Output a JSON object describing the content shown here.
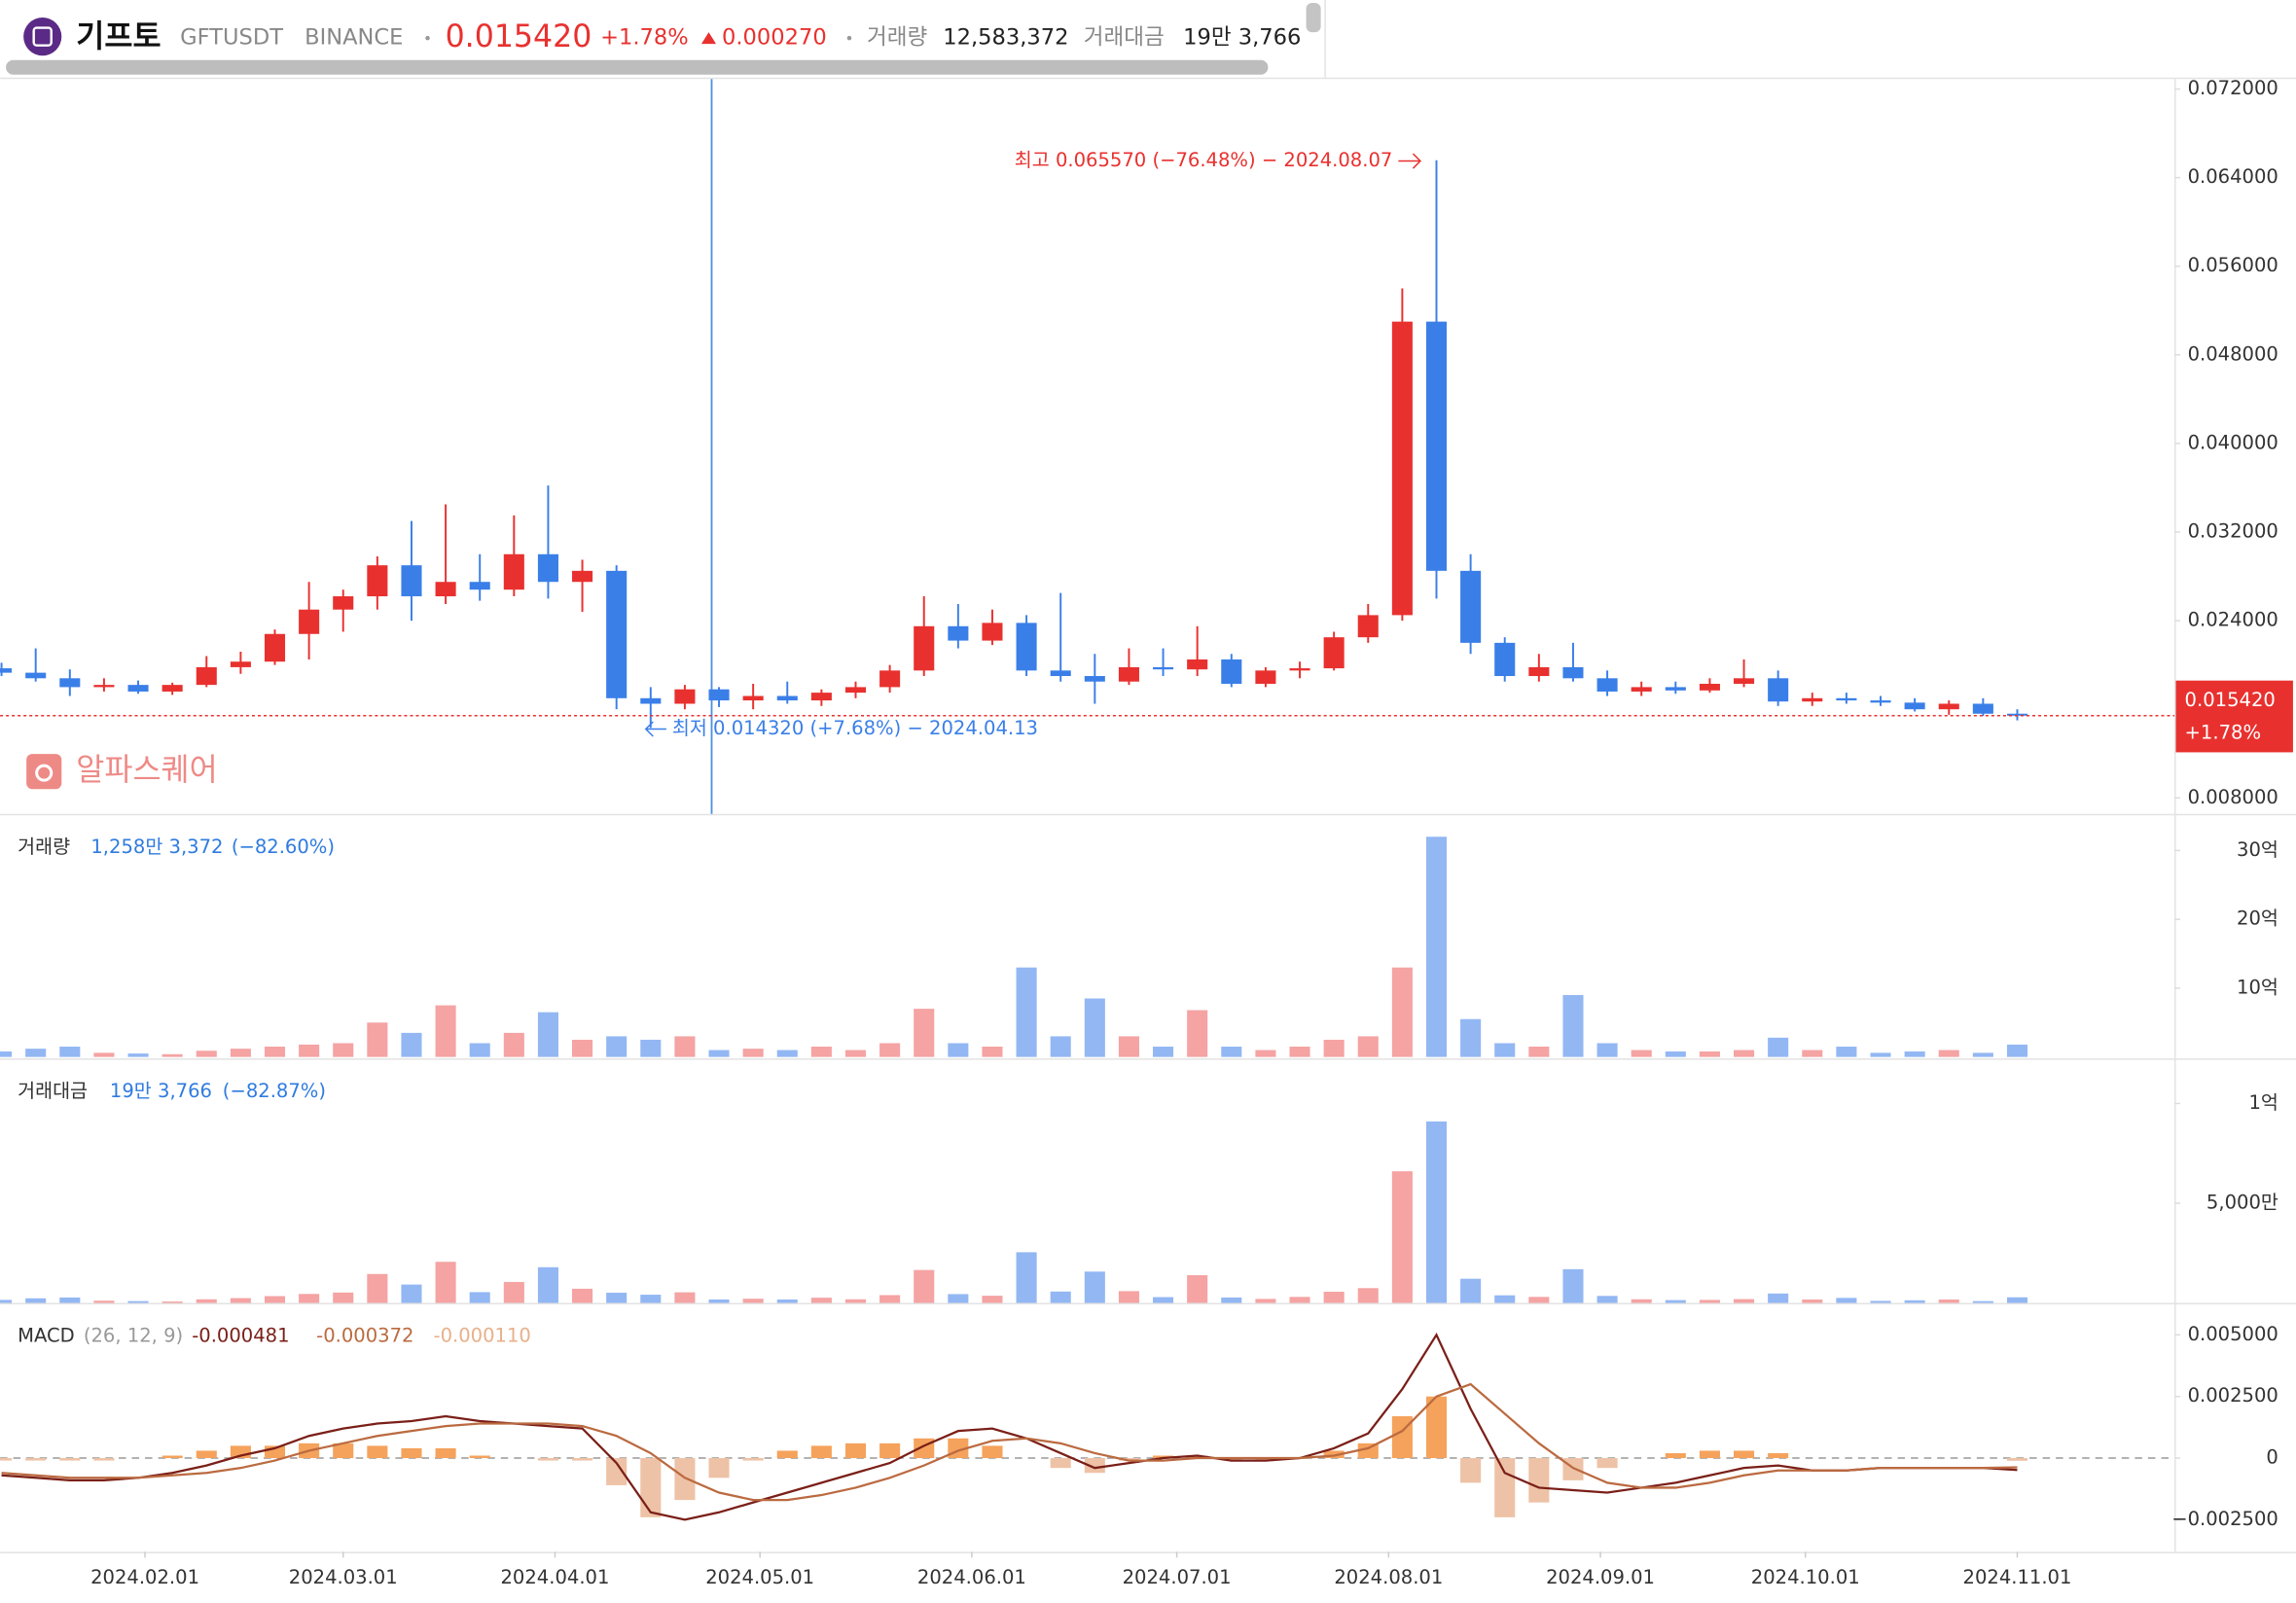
{
  "header": {
    "name": "기프토",
    "symbol": "GFTUSDT",
    "exchange": "BINANCE",
    "price": "0.015420",
    "change_pct": "+1.78%",
    "change": "0.000270",
    "volume_label": "거래량",
    "volume": "12,583,372",
    "turnover_label": "거래대금",
    "turnover": "19만 3,766"
  },
  "watermark": "알파스퀘어",
  "chart_data": [
    {
      "type": "candlestick",
      "up_color": "#e8312f",
      "down_color": "#3a7fe8",
      "xlim": [
        0,
        63.6
      ],
      "ylim": [
        0.00655,
        0.0729
      ],
      "yticks": [
        {
          "value": 0.008,
          "label": "0.008000"
        },
        {
          "value": 0.024,
          "label": "0.024000"
        },
        {
          "value": 0.032,
          "label": "0.032000"
        },
        {
          "value": 0.04,
          "label": "0.040000"
        },
        {
          "value": 0.048,
          "label": "0.048000"
        },
        {
          "value": 0.056,
          "label": "0.056000"
        },
        {
          "value": 0.064,
          "label": "0.064000"
        },
        {
          "value": 0.072,
          "label": "0.072000"
        }
      ],
      "open": [
        0.0197,
        0.0193,
        0.0188,
        0.018,
        0.0182,
        0.0176,
        0.0182,
        0.0198,
        0.0203,
        0.0228,
        0.025,
        0.0262,
        0.029,
        0.0262,
        0.0275,
        0.0268,
        0.03,
        0.0275,
        0.0285,
        0.017,
        0.0165,
        0.0178,
        0.0168,
        0.0172,
        0.0168,
        0.0175,
        0.018,
        0.0195,
        0.0235,
        0.0222,
        0.0238,
        0.0195,
        0.019,
        0.0185,
        0.0198,
        0.0196,
        0.0205,
        0.0183,
        0.0195,
        0.0197,
        0.0225,
        0.0245,
        0.051,
        0.0285,
        0.022,
        0.019,
        0.0198,
        0.0188,
        0.0176,
        0.018,
        0.0177,
        0.0183,
        0.0188,
        0.0167,
        0.017,
        0.0168,
        0.0166,
        0.016,
        0.0165,
        0.0156
      ],
      "high": [
        0.0202,
        0.0215,
        0.0196,
        0.0188,
        0.0186,
        0.0184,
        0.0208,
        0.0212,
        0.0232,
        0.0275,
        0.0268,
        0.0298,
        0.033,
        0.0345,
        0.03,
        0.0335,
        0.0362,
        0.0295,
        0.029,
        0.018,
        0.0182,
        0.018,
        0.0183,
        0.0185,
        0.0178,
        0.0185,
        0.02,
        0.0262,
        0.0255,
        0.025,
        0.0245,
        0.0265,
        0.021,
        0.0215,
        0.0215,
        0.0235,
        0.021,
        0.0198,
        0.0203,
        0.023,
        0.0255,
        0.054,
        0.06557,
        0.03,
        0.0225,
        0.021,
        0.022,
        0.0195,
        0.0185,
        0.0185,
        0.0188,
        0.0205,
        0.0195,
        0.0175,
        0.0175,
        0.0172,
        0.017,
        0.0168,
        0.017,
        0.016
      ],
      "low": [
        0.019,
        0.0185,
        0.0172,
        0.0176,
        0.0174,
        0.0173,
        0.018,
        0.0192,
        0.02,
        0.0205,
        0.023,
        0.025,
        0.024,
        0.0255,
        0.0258,
        0.0262,
        0.026,
        0.0248,
        0.016,
        0.01432,
        0.016,
        0.0162,
        0.016,
        0.0165,
        0.0163,
        0.017,
        0.0175,
        0.019,
        0.0215,
        0.0218,
        0.019,
        0.0185,
        0.0165,
        0.0182,
        0.019,
        0.019,
        0.018,
        0.018,
        0.0188,
        0.0195,
        0.022,
        0.024,
        0.026,
        0.021,
        0.0185,
        0.0185,
        0.0185,
        0.0172,
        0.0172,
        0.0174,
        0.0175,
        0.018,
        0.0163,
        0.0163,
        0.0165,
        0.0163,
        0.0158,
        0.0155,
        0.0154,
        0.015
      ],
      "close": [
        0.0193,
        0.0188,
        0.018,
        0.0182,
        0.0176,
        0.0182,
        0.0198,
        0.0203,
        0.0228,
        0.025,
        0.0262,
        0.029,
        0.0262,
        0.0275,
        0.0268,
        0.03,
        0.0275,
        0.0285,
        0.017,
        0.0165,
        0.0178,
        0.0168,
        0.0172,
        0.0168,
        0.0175,
        0.018,
        0.0195,
        0.0235,
        0.0222,
        0.0238,
        0.0195,
        0.019,
        0.0185,
        0.0198,
        0.0196,
        0.0205,
        0.0183,
        0.0195,
        0.0197,
        0.0225,
        0.0245,
        0.051,
        0.0285,
        0.022,
        0.019,
        0.0198,
        0.0188,
        0.0176,
        0.018,
        0.0177,
        0.0183,
        0.0188,
        0.0167,
        0.017,
        0.0168,
        0.0166,
        0.016,
        0.0165,
        0.0156,
        0.01542
      ],
      "last_price": {
        "value": 0.01542,
        "label": "0.015420"
      },
      "last_change": "+1.78%",
      "annotations": [
        {
          "text": "최고 0.065570 (−76.48%) − 2024.08.07"
        },
        {
          "text": "최저 0.014320 (+7.68%) − 2024.04.13"
        }
      ]
    },
    {
      "type": "bar",
      "title": "거래량",
      "value_label": "1,258만 3,372",
      "change_label": "(−82.60%)",
      "up_color": "#f5a3a3",
      "down_color": "#93b7f3",
      "xlim": [
        0,
        63.6
      ],
      "ylim": [
        0,
        3340000000
      ],
      "yticks": [
        {
          "value": 1000000000,
          "label": "10억"
        },
        {
          "value": 2000000000,
          "label": "20억"
        },
        {
          "value": 3000000000,
          "label": "30억"
        }
      ],
      "values": [
        80000000,
        120000000,
        150000000,
        60000000,
        50000000,
        40000000,
        90000000,
        120000000,
        150000000,
        180000000,
        200000000,
        500000000,
        350000000,
        750000000,
        200000000,
        350000000,
        650000000,
        250000000,
        300000000,
        250000000,
        300000000,
        100000000,
        120000000,
        100000000,
        150000000,
        100000000,
        200000000,
        700000000,
        200000000,
        150000000,
        1300000000,
        300000000,
        850000000,
        300000000,
        150000000,
        680000000,
        150000000,
        100000000,
        150000000,
        250000000,
        300000000,
        1300000000,
        3200000000,
        550000000,
        200000000,
        150000000,
        900000000,
        200000000,
        100000000,
        80000000,
        80000000,
        100000000,
        280000000,
        100000000,
        150000000,
        60000000,
        80000000,
        100000000,
        60000000,
        180000000
      ]
    },
    {
      "type": "bar",
      "title": "거래대금",
      "value_label": "19만 3,766",
      "change_label": "(−82.87%)",
      "up_color": "#f5a3a3",
      "down_color": "#93b7f3",
      "xlim": [
        0,
        63.6
      ],
      "ylim": [
        0,
        116000000
      ],
      "yticks": [
        {
          "value": 50000000,
          "label": "5,000만"
        },
        {
          "value": 100000000,
          "label": "1억"
        }
      ],
      "values": [
        1500000,
        2300000,
        2700000,
        1100000,
        900000,
        700000,
        1800000,
        2400000,
        3400000,
        4500000,
        5200000,
        14500000,
        9200000,
        20600000,
        5400000,
        10500000,
        17900000,
        7100000,
        5100000,
        4100000,
        5300000,
        1700000,
        2100000,
        1700000,
        2600000,
        1800000,
        3900000,
        16500000,
        4400000,
        3600000,
        25400000,
        5700000,
        15700000,
        5900000,
        2900000,
        13900000,
        2700000,
        2000000,
        3000000,
        5600000,
        7400000,
        66000000,
        91000000,
        12100000,
        3800000,
        3000000,
        16900000,
        3500000,
        1800000,
        1400000,
        1500000,
        1900000,
        4700000,
        1700000,
        2500000,
        1000000,
        1300000,
        1700000,
        900000,
        2800000
      ]
    },
    {
      "type": "macd",
      "title": "MACD",
      "params": "(26, 12, 9)",
      "xlim": [
        0,
        63.6
      ],
      "ylim": [
        -0.0038,
        0.006
      ],
      "yticks": [
        {
          "value": -0.0025,
          "label": "−0.002500"
        },
        0,
        {
          "value": 0.0025,
          "label": "0.002500"
        },
        {
          "value": 0.005,
          "label": "0.005000"
        }
      ],
      "xticks": [
        {
          "value": 4.2,
          "label": "2024.02.01"
        },
        {
          "value": 10,
          "label": "2024.03.01"
        },
        {
          "value": 16.2,
          "label": "2024.04.01"
        },
        {
          "value": 22.2,
          "label": "2024.05.01"
        },
        {
          "value": 28.4,
          "label": "2024.06.01"
        },
        {
          "value": 34.4,
          "label": "2024.07.01"
        },
        {
          "value": 40.6,
          "label": "2024.08.01"
        },
        {
          "value": 46.8,
          "label": "2024.09.01"
        },
        {
          "value": 52.8,
          "label": "2024.10.01"
        },
        {
          "value": 59,
          "label": "2024.11.01"
        }
      ],
      "series": [
        {
          "kind": "line",
          "color": "#7a1f18",
          "last_label": "-0.000481",
          "values": [
            -0.0007,
            -0.0008,
            -0.0009,
            -0.0009,
            -0.0008,
            -0.0006,
            -0.0003,
            0.0001,
            0.0004,
            0.0009,
            0.0012,
            0.0014,
            0.0015,
            0.0017,
            0.0015,
            0.0014,
            0.0013,
            0.0012,
            -0.0002,
            -0.0022,
            -0.0025,
            -0.0022,
            -0.0018,
            -0.0014,
            -0.001,
            -0.0006,
            -0.0002,
            0.0005,
            0.0011,
            0.0012,
            0.0008,
            0.0002,
            -0.0004,
            -0.0002,
            0,
            0.0001,
            -0.0001,
            -0.0001,
            0,
            0.0004,
            0.001,
            0.0028,
            0.005,
            0.002,
            -0.0006,
            -0.0012,
            -0.0013,
            -0.0014,
            -0.0012,
            -0.001,
            -0.0007,
            -0.0004,
            -0.0003,
            -0.0005,
            -0.0005,
            -0.0004,
            -0.0004,
            -0.0004,
            -0.0004,
            -0.000481
          ]
        },
        {
          "kind": "line",
          "color": "#bb6a40",
          "last_label": "-0.000372",
          "values": [
            -0.0006,
            -0.0007,
            -0.0008,
            -0.0008,
            -0.0008,
            -0.0007,
            -0.0006,
            -0.0004,
            -0.0001,
            0.0003,
            0.0006,
            0.0009,
            0.0011,
            0.0013,
            0.0014,
            0.0014,
            0.0014,
            0.0013,
            0.0009,
            0.0002,
            -0.0008,
            -0.0014,
            -0.0017,
            -0.0017,
            -0.0015,
            -0.0012,
            -0.0008,
            -0.0003,
            0.0003,
            0.0007,
            0.0008,
            0.0006,
            0.0002,
            -0.0001,
            -0.0001,
            0,
            0,
            0,
            0,
            0.0001,
            0.0004,
            0.0011,
            0.0025,
            0.003,
            0.0018,
            0.0006,
            -0.0004,
            -0.001,
            -0.0012,
            -0.0012,
            -0.001,
            -0.0007,
            -0.0005,
            -0.0005,
            -0.0005,
            -0.0004,
            -0.0004,
            -0.0004,
            -0.0004,
            -0.000372
          ]
        },
        {
          "kind": "histogram",
          "color": "#f5a25c",
          "negative_color": "#eec2a6",
          "last_label": "-0.000110",
          "values": [
            -0.0001,
            -0.0001,
            -0.0001,
            -0.0001,
            0,
            0.0001,
            0.0003,
            0.0005,
            0.0005,
            0.0006,
            0.0006,
            0.0005,
            0.0004,
            0.0004,
            0.0001,
            0,
            -0.0001,
            -0.0001,
            -0.0011,
            -0.0024,
            -0.0017,
            -0.0008,
            -0.0001,
            0.0003,
            0.0005,
            0.0006,
            0.0006,
            0.0008,
            0.0008,
            0.0005,
            0,
            -0.0004,
            -0.0006,
            -0.0001,
            0.0001,
            0.0001,
            -0.0001,
            -0.0001,
            0,
            0.0003,
            0.0006,
            0.0017,
            0.0025,
            -0.001,
            -0.0024,
            -0.0018,
            -0.0009,
            -0.0004,
            0,
            0.0002,
            0.0003,
            0.0003,
            0.0002,
            0,
            0,
            0,
            0,
            0,
            0,
            -0.00011
          ]
        }
      ]
    }
  ]
}
